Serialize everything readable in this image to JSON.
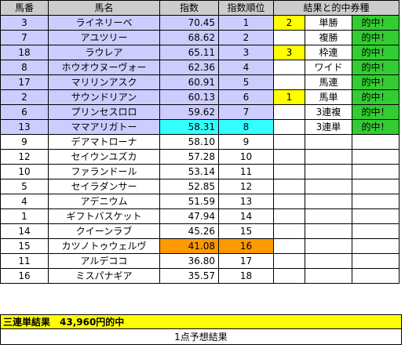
{
  "headers": {
    "umaban": "馬番",
    "bamei": "馬名",
    "shisu": "指数",
    "juni": "指数順位",
    "kekka": "結果と的中券種"
  },
  "rows": [
    {
      "umaban": "3",
      "name": "ライネリーベ",
      "score": "70.45",
      "rank": "1"
    },
    {
      "umaban": "7",
      "name": "アユツリー",
      "score": "68.62",
      "rank": "2"
    },
    {
      "umaban": "18",
      "name": "ラウレア",
      "score": "65.11",
      "rank": "3"
    },
    {
      "umaban": "8",
      "name": "ホウオウヌーヴォー",
      "score": "62.36",
      "rank": "4"
    },
    {
      "umaban": "17",
      "name": "マリリンアスク",
      "score": "60.91",
      "rank": "5"
    },
    {
      "umaban": "2",
      "name": "サウンドリアン",
      "score": "60.13",
      "rank": "6"
    },
    {
      "umaban": "6",
      "name": "プリンセスロロ",
      "score": "59.62",
      "rank": "7"
    },
    {
      "umaban": "13",
      "name": "ママアリガトー",
      "score": "58.31",
      "rank": "8"
    },
    {
      "umaban": "9",
      "name": "デアマトローナ",
      "score": "58.10",
      "rank": "9"
    },
    {
      "umaban": "12",
      "name": "セイウンユズカ",
      "score": "57.28",
      "rank": "10"
    },
    {
      "umaban": "10",
      "name": "ファランドール",
      "score": "53.14",
      "rank": "11"
    },
    {
      "umaban": "5",
      "name": "セイラダンサー",
      "score": "52.85",
      "rank": "12"
    },
    {
      "umaban": "4",
      "name": "アデニウム",
      "score": "51.59",
      "rank": "13"
    },
    {
      "umaban": "1",
      "name": "ギフトバスケット",
      "score": "47.94",
      "rank": "14"
    },
    {
      "umaban": "14",
      "name": "クイーンラブ",
      "score": "45.26",
      "rank": "15"
    },
    {
      "umaban": "15",
      "name": "カツノトゥウェルヴ",
      "score": "41.08",
      "rank": "16"
    },
    {
      "umaban": "11",
      "name": "アルデココ",
      "score": "36.80",
      "rank": "17"
    },
    {
      "umaban": "16",
      "name": "ミスパナギア",
      "score": "35.57",
      "rank": "18"
    }
  ],
  "results": [
    {
      "place": "2",
      "ticket": "単勝",
      "hit": "的中！"
    },
    {
      "place": "",
      "ticket": "複勝",
      "hit": "的中！"
    },
    {
      "place": "3",
      "ticket": "枠連",
      "hit": "的中！"
    },
    {
      "place": "",
      "ticket": "ワイド",
      "hit": "的中！"
    },
    {
      "place": "",
      "ticket": "馬連",
      "hit": "的中！"
    },
    {
      "place": "1",
      "ticket": "馬単",
      "hit": "的中！"
    },
    {
      "place": "",
      "ticket": "3連複",
      "hit": "的中！"
    },
    {
      "place": "",
      "ticket": "3連単",
      "hit": "的中！"
    }
  ],
  "summary": "三連単結果　43,960円的中",
  "footer": "1点予想結果",
  "colors": {
    "header": "#cccccc",
    "horse_row": "#ccccff",
    "highlight_8th": "#33ffff",
    "highlight_16th": "#ff9900",
    "hit": "#33cc33",
    "place": "#ffff00"
  }
}
